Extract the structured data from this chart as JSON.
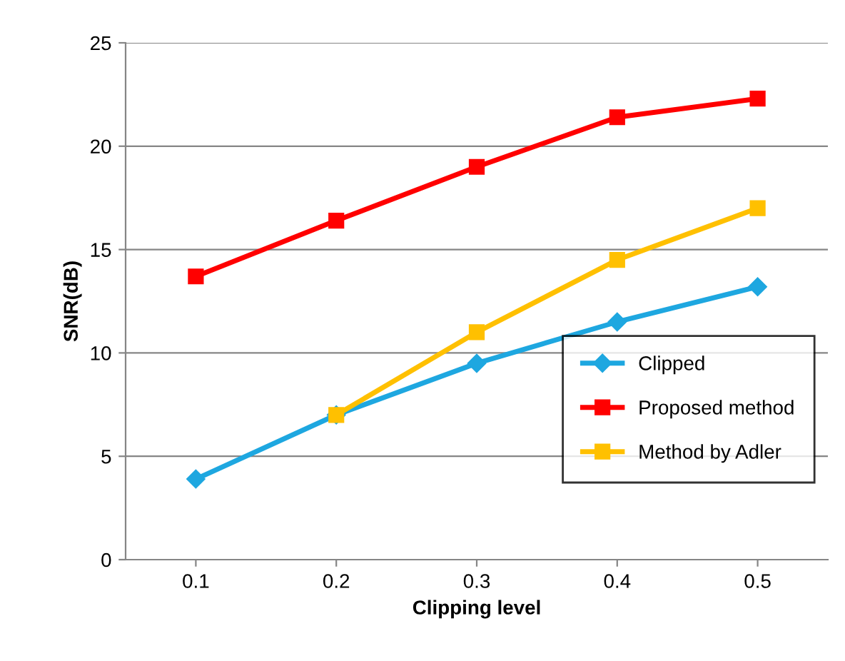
{
  "chart_data": {
    "type": "line",
    "xlabel": "Clipping level",
    "ylabel": "SNR(dB)",
    "categories": [
      "0.1",
      "0.2",
      "0.3",
      "0.4",
      "0.5"
    ],
    "series": [
      {
        "name": "Clipped",
        "color": "#1ea7e0",
        "marker": "diamond",
        "values": [
          3.9,
          7.0,
          9.5,
          11.5,
          13.2
        ]
      },
      {
        "name": "Proposed method",
        "color": "#ff0000",
        "marker": "square",
        "values": [
          13.7,
          16.4,
          19.0,
          21.4,
          22.3
        ]
      },
      {
        "name": "Method by Adler",
        "color": "#ffc000",
        "marker": "square",
        "values": [
          null,
          7.0,
          11.0,
          14.5,
          17.0
        ]
      }
    ],
    "ylim": [
      0,
      25
    ],
    "yticks": [
      0,
      5,
      10,
      15,
      20,
      25
    ],
    "grid": "y",
    "legend": "bottom right",
    "line_style": "solid"
  }
}
